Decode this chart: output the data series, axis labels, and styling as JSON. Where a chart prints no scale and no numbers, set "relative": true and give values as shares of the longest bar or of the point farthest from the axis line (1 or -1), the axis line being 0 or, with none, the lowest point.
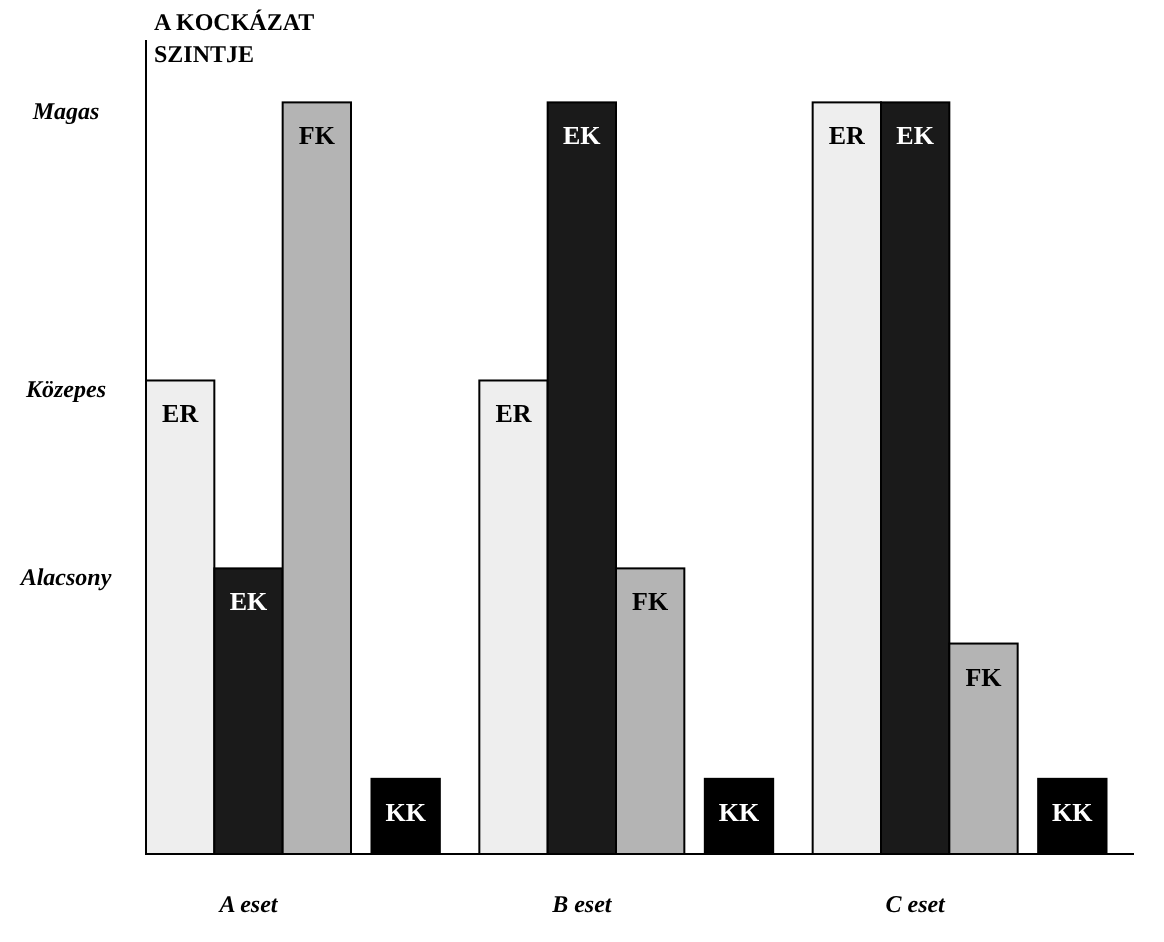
{
  "chart_data": {
    "type": "bar",
    "ylabel": "A KOCKÁZAT SZINTJE",
    "categories": [
      "A eset",
      "B eset",
      "C eset"
    ],
    "series": [
      {
        "name": "ER",
        "color": "#eeeeee",
        "values": [
          0.63,
          0.63,
          1
        ]
      },
      {
        "name": "EK",
        "color": "#1a1a1a",
        "values": [
          0.38,
          1,
          1
        ]
      },
      {
        "name": "FK",
        "color": "#b4b4b4",
        "values": [
          1,
          0.38,
          0.28
        ]
      },
      {
        "name": "KK",
        "color": "#000000",
        "values": [
          0.1,
          0.1,
          0.1
        ]
      }
    ],
    "relative": true,
    "annotations": [
      "Magas",
      "Közepes",
      "Alacsony"
    ],
    "grid": false
  }
}
